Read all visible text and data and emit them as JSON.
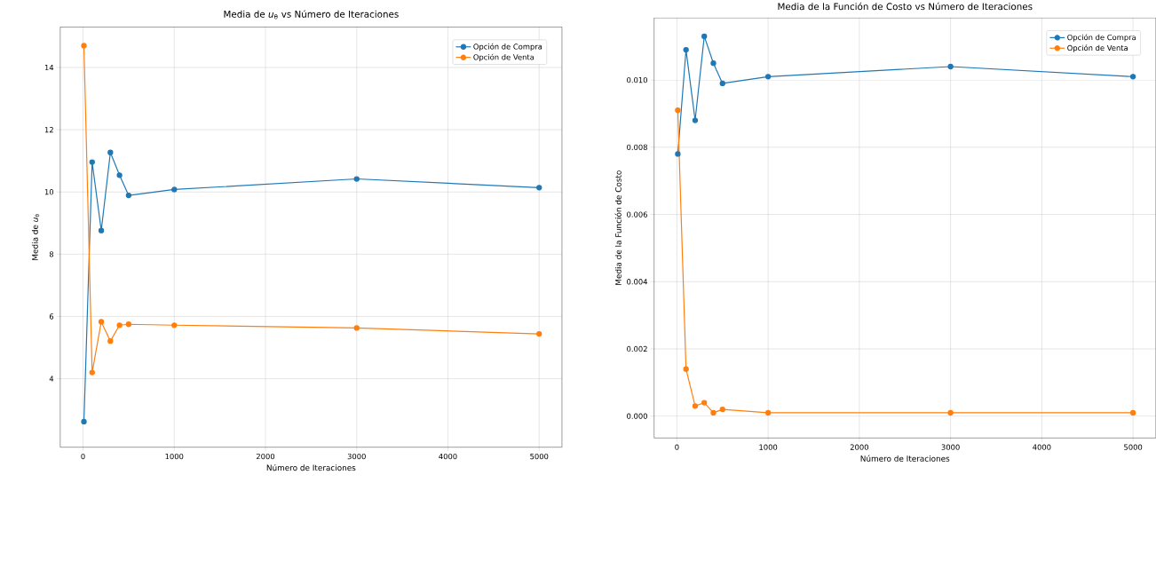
{
  "chart_data": [
    {
      "type": "line",
      "title": "Media de *u*$_{θ}$ vs Número de Iteraciones",
      "xlabel": "Número de Iteraciones",
      "ylabel": "Media de *u*$_{θ}$",
      "x": [
        10,
        100,
        200,
        300,
        400,
        500,
        1000,
        3000,
        5000
      ],
      "series": [
        {
          "name": "Opción de Compra",
          "color": "#1f77b4",
          "values": [
            2.62,
            10.96,
            8.76,
            11.27,
            10.54,
            9.89,
            10.08,
            10.42,
            10.14
          ]
        },
        {
          "name": "Opción de Venta",
          "color": "#ff7f0e",
          "values": [
            14.7,
            4.2,
            5.83,
            5.21,
            5.72,
            5.75,
            5.72,
            5.63,
            5.44
          ]
        }
      ],
      "xlim": [
        -250,
        5250
      ],
      "ylim": [
        1.8,
        15.3
      ],
      "xticks": [
        0,
        1000,
        2000,
        3000,
        4000,
        5000
      ],
      "yticks": [
        4,
        6,
        8,
        10,
        12,
        14
      ],
      "grid": true,
      "legend": "top right",
      "marker": "circle"
    },
    {
      "type": "line",
      "title": "Media de la Función de Costo vs Número de Iteraciones",
      "xlabel": "Número de Iteraciones",
      "ylabel": "Media de la Función de Costo",
      "x": [
        10,
        100,
        200,
        300,
        400,
        500,
        1000,
        3000,
        5000
      ],
      "series": [
        {
          "name": "Opción de Compra",
          "color": "#1f77b4",
          "values": [
            0.0078,
            0.0109,
            0.0088,
            0.0113,
            0.0105,
            0.0099,
            0.0101,
            0.0104,
            0.0101
          ]
        },
        {
          "name": "Opción de Venta",
          "color": "#ff7f0e",
          "values": [
            0.0091,
            0.0014,
            0.0003,
            0.0004,
            0.0001,
            0.0002,
            0.0001,
            0.0001,
            0.0001
          ]
        }
      ],
      "xlim": [
        -250,
        5250
      ],
      "ylim": [
        -0.00065,
        0.01185
      ],
      "xticks": [
        0,
        1000,
        2000,
        3000,
        4000,
        5000
      ],
      "yticks": [
        {
          "value": 0,
          "label": "0.000"
        },
        {
          "value": 0.002,
          "label": "0.002"
        },
        {
          "value": 0.004,
          "label": "0.004"
        },
        {
          "value": 0.006,
          "label": "0.006"
        },
        {
          "value": 0.008,
          "label": "0.008"
        },
        {
          "value": 0.01,
          "label": "0.010"
        }
      ],
      "grid": true,
      "legend": "top right",
      "marker": "circle"
    }
  ]
}
